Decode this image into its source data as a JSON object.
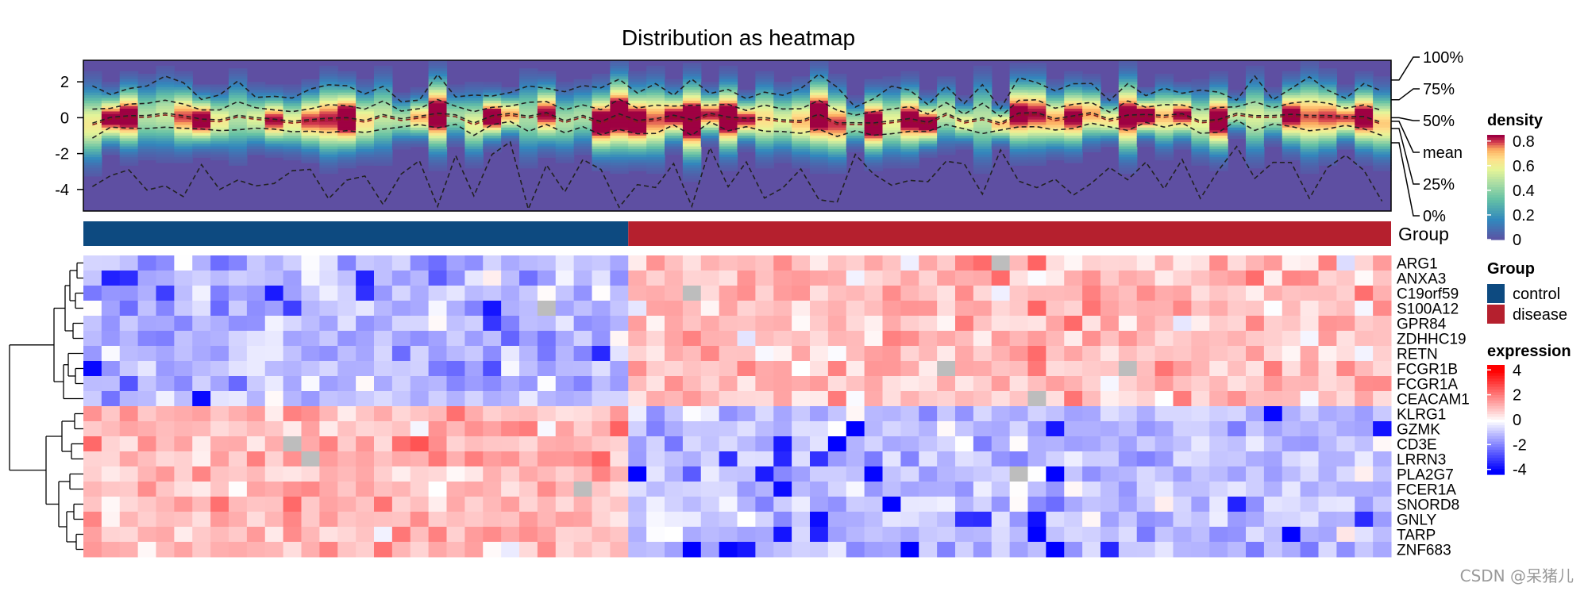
{
  "chart_data": {
    "type": "heatmap",
    "title": "Distribution as heatmap",
    "density_panel": {
      "y_ticks": [
        "2",
        "0",
        "-2",
        "-4"
      ],
      "y_tick_values": [
        2,
        0,
        -2,
        -4
      ],
      "ylim": [
        -5.2,
        3.2
      ],
      "quantile_labels": [
        "100%",
        "75%",
        "50%",
        "mean",
        "25%",
        "0%"
      ]
    },
    "annotation": {
      "track_label": "Group",
      "control_count": 30,
      "disease_count": 42
    },
    "genes": [
      "ARG1",
      "ANXA3",
      "C19orf59",
      "S100A12",
      "GPR84",
      "ZDHHC19",
      "RETN",
      "FCGR1B",
      "FCGR1A",
      "CEACAM1",
      "KLRG1",
      "GZMK",
      "CD3E",
      "LRRN3",
      "PLA2G7",
      "FCER1A",
      "SNORD8",
      "GNLY",
      "TARP",
      "ZNF683"
    ],
    "gene_group_direction": [
      -1,
      -1,
      -1,
      -1,
      -1,
      -1,
      -1,
      -1,
      -1,
      -1,
      1,
      1,
      1,
      1,
      1,
      1,
      1,
      1,
      1,
      1
    ],
    "legends": {
      "density": {
        "title": "density",
        "ticks": [
          "0.8",
          "0.6",
          "0.4",
          "0.2",
          "0"
        ],
        "tick_values": [
          0.8,
          0.6,
          0.4,
          0.2,
          0
        ]
      },
      "group": {
        "title": "Group",
        "items": [
          {
            "label": "control",
            "color": "#0d4a80"
          },
          {
            "label": "disease",
            "color": "#b5202e"
          }
        ]
      },
      "expression": {
        "title": "expression",
        "ticks": [
          "4",
          "2",
          "0",
          "-2",
          "-4"
        ],
        "tick_values": [
          4,
          2,
          0,
          -2,
          -4
        ]
      }
    },
    "colors": {
      "low": "#0000ff",
      "mid": "#ffffff",
      "high": "#ff0000",
      "control": "#0d4a80",
      "disease": "#b5202e"
    }
  },
  "watermark": "CSDN @呆猪儿"
}
